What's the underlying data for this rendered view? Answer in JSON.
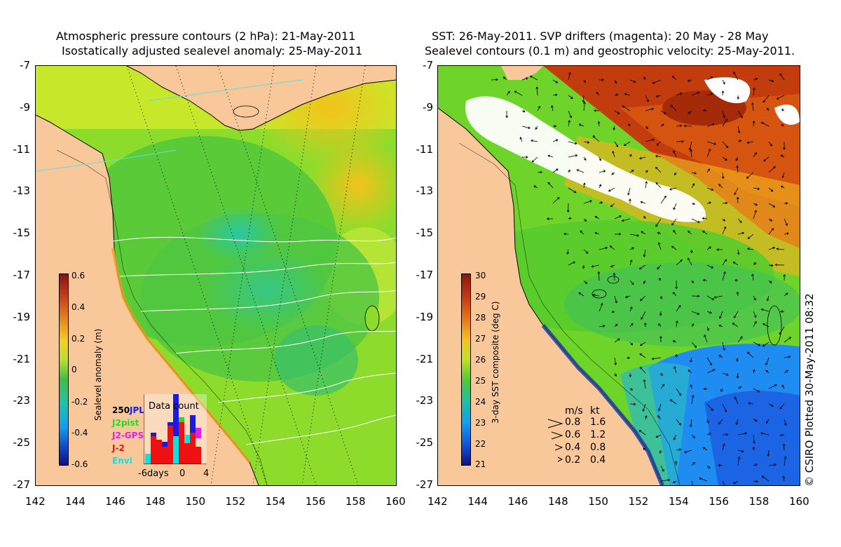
{
  "left_panel": {
    "title_line1": "Atmospheric pressure contours (2 hPa): 21-May-2011",
    "title_line2": "Isostatically adjusted sealevel anomaly: 25-May-2011",
    "colorbar": {
      "label": "Sealevel anomaly (m)",
      "ticks": [
        "0.6",
        "0.4",
        "0.2",
        "0",
        "-0.2",
        "-0.4",
        "-0.6"
      ]
    },
    "inset": {
      "title": "Data count",
      "max_label": "250",
      "x_ticks": [
        "-6days",
        "0",
        "4"
      ],
      "satellites": [
        {
          "name": "JPL",
          "color": "#1a1ae0"
        },
        {
          "name": "J2pist",
          "color": "#22dd22"
        },
        {
          "name": "J2-GPS",
          "color": "#e020e0"
        },
        {
          "name": "J-2",
          "color": "#ee1111"
        },
        {
          "name": "Envi",
          "color": "#10e0e0"
        }
      ]
    }
  },
  "right_panel": {
    "title_line1": "SST: 26-May-2011. SVP drifters (magenta): 20 May - 28 May",
    "title_line2": "Sealevel contours (0.1 m) and geostrophic velocity: 25-May-2011.",
    "colorbar": {
      "label": "3-day SST composite (deg C)",
      "ticks": [
        "30",
        "29",
        "28",
        "27",
        "26",
        "25",
        "24",
        "23",
        "22",
        "21"
      ]
    },
    "velocity_legend": {
      "header_ms": "m/s",
      "header_kt": "kt",
      "rows": [
        {
          "ms": "0.8",
          "kt": "1.6"
        },
        {
          "ms": "0.6",
          "kt": "1.2"
        },
        {
          "ms": "0.4",
          "kt": "0.8"
        },
        {
          "ms": "0.2",
          "kt": "0.4"
        }
      ]
    }
  },
  "axes": {
    "y_ticks": [
      "-7",
      "-9",
      "-11",
      "-13",
      "-15",
      "-17",
      "-19",
      "-21",
      "-23",
      "-25",
      "-27"
    ],
    "x_ticks": [
      "142",
      "144",
      "146",
      "148",
      "150",
      "152",
      "154",
      "156",
      "158",
      "160"
    ]
  },
  "credit": "© CSIRO Plotted 30-May-2011 08:32",
  "colors": {
    "land": "#f9c89a",
    "ocean_green": "#7ed321",
    "sst_warm": "#b8380c",
    "sst_cool": "#1e8cf0"
  }
}
